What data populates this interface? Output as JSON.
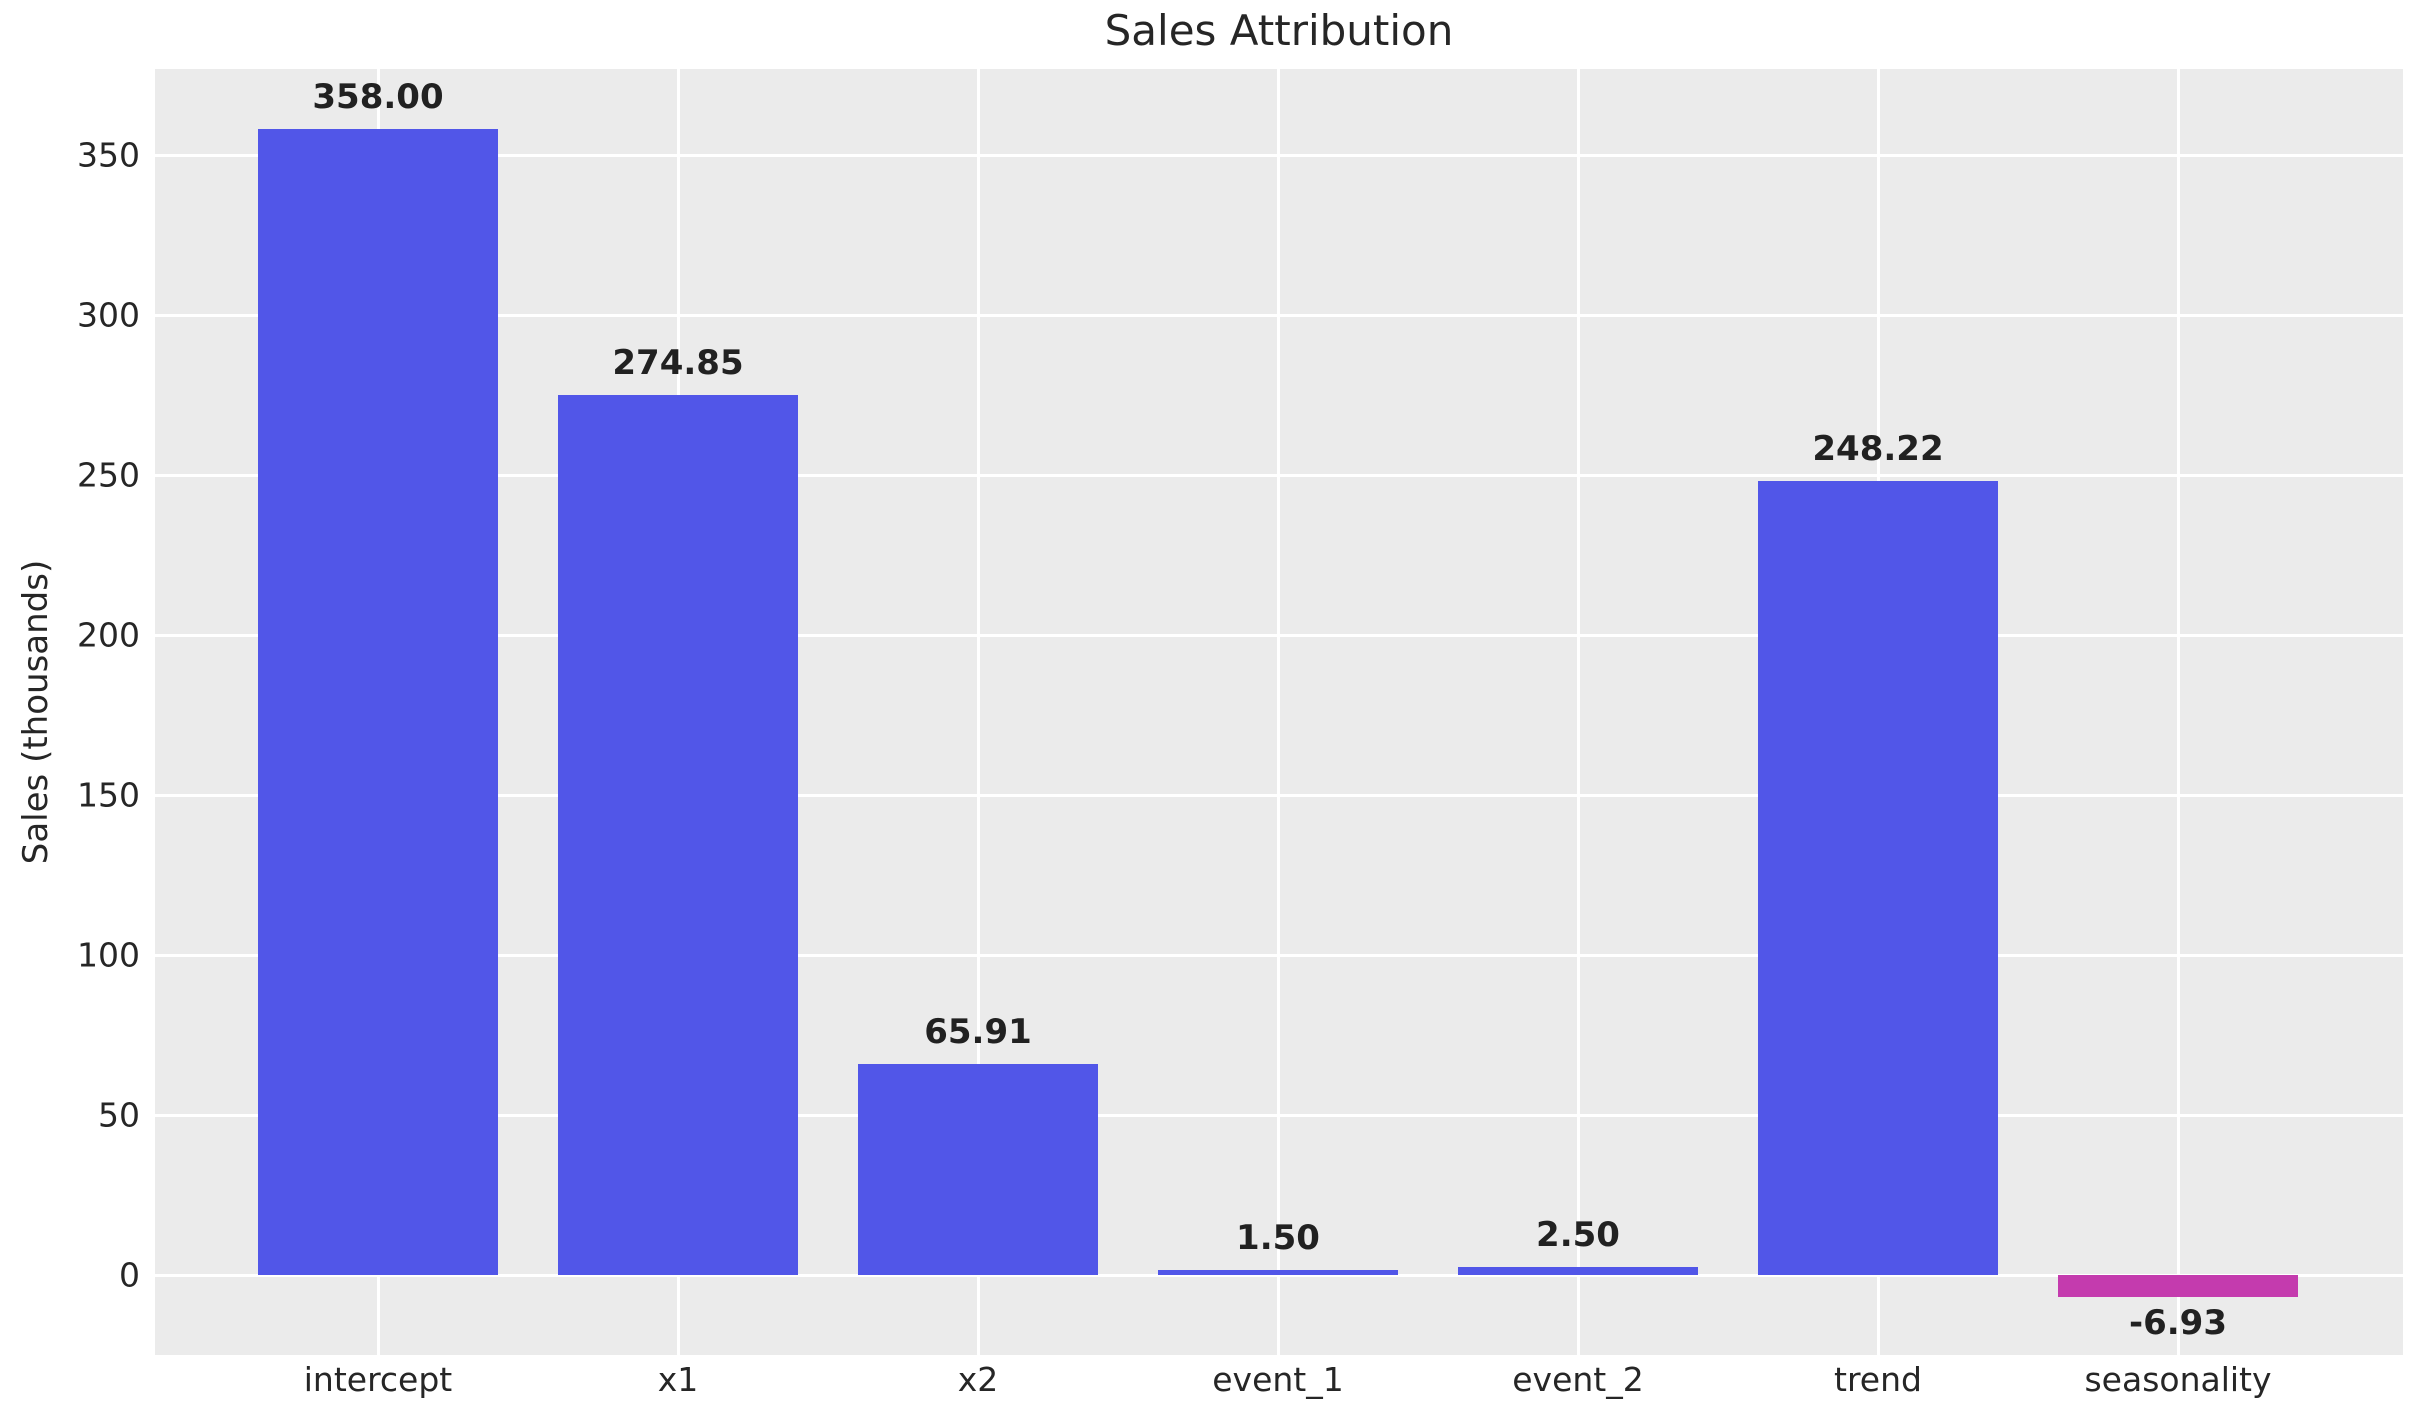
{
  "chart_data": {
    "type": "bar",
    "title": "Sales Attribution",
    "xlabel": "",
    "ylabel": "Sales (thousands)",
    "categories": [
      "intercept",
      "x1",
      "x2",
      "event_1",
      "event_2",
      "trend",
      "seasonality"
    ],
    "values": [
      358.0,
      274.85,
      65.91,
      1.5,
      2.5,
      248.22,
      -6.93
    ],
    "value_labels": [
      "358.00",
      "274.85",
      "65.91",
      "1.50",
      "2.50",
      "248.22",
      "-6.93"
    ],
    "yticks": [
      0,
      50,
      100,
      150,
      200,
      250,
      300,
      350
    ],
    "ylim": [
      -25,
      377
    ],
    "grid": true,
    "legend": false,
    "colors": {
      "positive_bar": "#5156e8",
      "negative_bar": "#c43bae",
      "plot_background": "#ebebeb",
      "gridline": "#ffffff",
      "text": "#262626",
      "value_label_text": "#212121",
      "figure_background": "#ffffff"
    }
  }
}
